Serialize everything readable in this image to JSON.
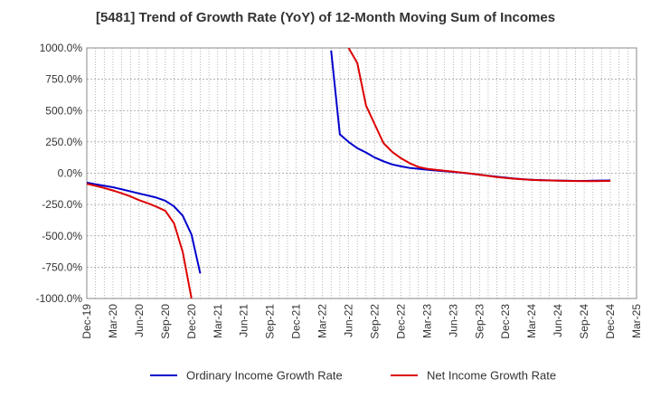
{
  "chart_data": {
    "type": "line",
    "title": "[5481]  Trend of Growth Rate (YoY) of 12-Month Moving Sum of Incomes",
    "xlabel": "",
    "ylabel": "",
    "ylim": [
      -1000,
      1000
    ],
    "yticks": [
      1000,
      750,
      500,
      250,
      0,
      -250,
      -500,
      -750,
      -1000
    ],
    "ytick_labels": [
      "1000.0%",
      "750.0%",
      "500.0%",
      "250.0%",
      "0.0%",
      "-250.0%",
      "-500.0%",
      "-750.0%",
      "-1000.0%"
    ],
    "x_ticks": [
      "Dec-19",
      "Mar-20",
      "Jun-20",
      "Sep-20",
      "Dec-20",
      "Mar-21",
      "Jun-21",
      "Sep-21",
      "Dec-21",
      "Mar-22",
      "Jun-22",
      "Sep-22",
      "Dec-22",
      "Mar-23",
      "Jun-23",
      "Sep-23",
      "Dec-23",
      "Mar-24",
      "Jun-24",
      "Sep-24",
      "Dec-24",
      "Mar-25"
    ],
    "grid": true,
    "legend_position": "bottom",
    "series": [
      {
        "name": "Ordinary Income Growth Rate",
        "color": "#0000cc",
        "points": [
          [
            "2019-12",
            -75
          ],
          [
            "2020-01",
            -88
          ],
          [
            "2020-02",
            -100
          ],
          [
            "2020-03",
            -112
          ],
          [
            "2020-04",
            -128
          ],
          [
            "2020-05",
            -145
          ],
          [
            "2020-06",
            -162
          ],
          [
            "2020-07",
            -178
          ],
          [
            "2020-08",
            -195
          ],
          [
            "2020-09",
            -220
          ],
          [
            "2020-10",
            -265
          ],
          [
            "2020-11",
            -340
          ],
          [
            "2020-12",
            -490
          ],
          [
            "2021-01",
            -800
          ],
          [
            "2022-04",
            980
          ],
          [
            "2022-05",
            310
          ],
          [
            "2022-06",
            250
          ],
          [
            "2022-07",
            200
          ],
          [
            "2022-08",
            165
          ],
          [
            "2022-09",
            125
          ],
          [
            "2022-10",
            95
          ],
          [
            "2022-11",
            70
          ],
          [
            "2022-12",
            55
          ],
          [
            "2023-01",
            42
          ],
          [
            "2023-02",
            35
          ],
          [
            "2023-03",
            28
          ],
          [
            "2023-04",
            22
          ],
          [
            "2023-05",
            16
          ],
          [
            "2023-06",
            10
          ],
          [
            "2023-07",
            4
          ],
          [
            "2023-08",
            -4
          ],
          [
            "2023-09",
            -12
          ],
          [
            "2023-10",
            -20
          ],
          [
            "2023-11",
            -28
          ],
          [
            "2023-12",
            -35
          ],
          [
            "2024-01",
            -42
          ],
          [
            "2024-02",
            -48
          ],
          [
            "2024-03",
            -52
          ],
          [
            "2024-04",
            -55
          ],
          [
            "2024-05",
            -57
          ],
          [
            "2024-06",
            -59
          ],
          [
            "2024-07",
            -60
          ],
          [
            "2024-08",
            -61
          ],
          [
            "2024-09",
            -61
          ],
          [
            "2024-10",
            -60
          ],
          [
            "2024-11",
            -59
          ],
          [
            "2024-12",
            -58
          ]
        ]
      },
      {
        "name": "Net Income Growth Rate",
        "color": "#dd0000",
        "points": [
          [
            "2019-12",
            -85
          ],
          [
            "2020-01",
            -100
          ],
          [
            "2020-02",
            -118
          ],
          [
            "2020-03",
            -138
          ],
          [
            "2020-04",
            -160
          ],
          [
            "2020-05",
            -185
          ],
          [
            "2020-06",
            -215
          ],
          [
            "2020-07",
            -240
          ],
          [
            "2020-08",
            -268
          ],
          [
            "2020-09",
            -300
          ],
          [
            "2020-10",
            -400
          ],
          [
            "2020-11",
            -630
          ],
          [
            "2020-12",
            -1000
          ],
          [
            "2022-06",
            1000
          ],
          [
            "2022-07",
            880
          ],
          [
            "2022-08",
            540
          ],
          [
            "2022-09",
            390
          ],
          [
            "2022-10",
            240
          ],
          [
            "2022-11",
            170
          ],
          [
            "2022-12",
            120
          ],
          [
            "2023-01",
            80
          ],
          [
            "2023-02",
            50
          ],
          [
            "2023-03",
            35
          ],
          [
            "2023-04",
            27
          ],
          [
            "2023-05",
            20
          ],
          [
            "2023-06",
            13
          ],
          [
            "2023-07",
            5
          ],
          [
            "2023-08",
            -3
          ],
          [
            "2023-09",
            -12
          ],
          [
            "2023-10",
            -22
          ],
          [
            "2023-11",
            -31
          ],
          [
            "2023-12",
            -38
          ],
          [
            "2024-01",
            -44
          ],
          [
            "2024-02",
            -49
          ],
          [
            "2024-03",
            -53
          ],
          [
            "2024-04",
            -56
          ],
          [
            "2024-05",
            -58
          ],
          [
            "2024-06",
            -60
          ],
          [
            "2024-07",
            -61
          ],
          [
            "2024-08",
            -62
          ],
          [
            "2024-09",
            -63
          ],
          [
            "2024-10",
            -63
          ],
          [
            "2024-11",
            -62
          ],
          [
            "2024-12",
            -61
          ]
        ]
      }
    ]
  }
}
